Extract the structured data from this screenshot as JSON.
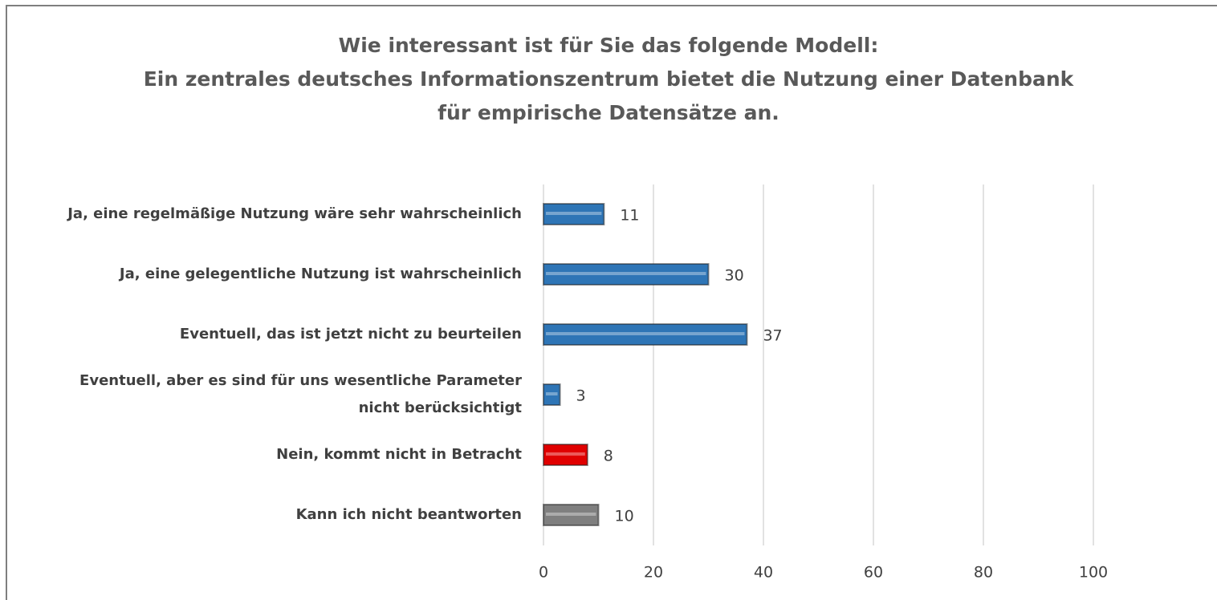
{
  "chart_data": {
    "type": "bar",
    "orientation": "horizontal",
    "title": "Wie interessant ist für Sie das folgende Modell:\nEin zentrales deutsches Informationszentrum bietet die Nutzung einer Datenbank\nfür empirische Datensätze an.",
    "categories": [
      "Ja, eine regelmäßige Nutzung wäre sehr wahrscheinlich",
      "Ja, eine gelegentliche Nutzung ist wahrscheinlich",
      "Eventuell, das ist jetzt nicht zu beurteilen",
      "Eventuell, aber es sind für uns wesentliche Parameter\nnicht berücksichtigt",
      "Nein, kommt nicht in Betracht",
      "Kann ich nicht beantworten"
    ],
    "values": [
      11,
      30,
      37,
      3,
      8,
      10
    ],
    "colors": [
      "#2e75b6",
      "#2e75b6",
      "#2e75b6",
      "#2e75b6",
      "#e00000",
      "#7f7f7f"
    ],
    "xlim": [
      0,
      120
    ],
    "xticks": [
      0,
      20,
      40,
      60,
      80,
      100
    ],
    "grid": true
  }
}
